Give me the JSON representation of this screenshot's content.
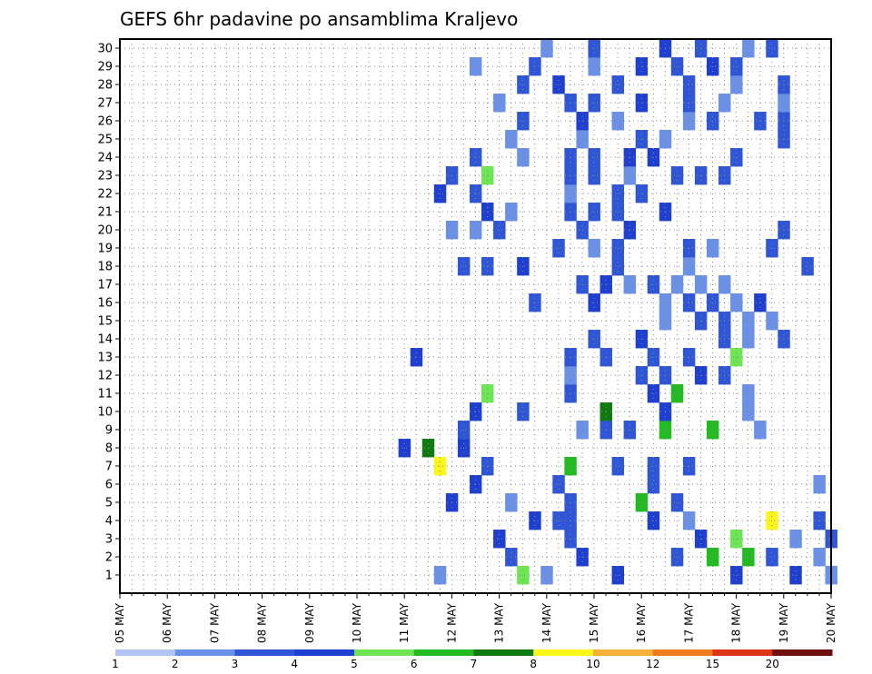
{
  "chart_data": {
    "type": "heatmap",
    "title": "GEFS 6hr padavine po ansamblima Kraljevo",
    "xlabel": "",
    "ylabel": "",
    "y_ticks": [
      "1",
      "2",
      "3",
      "4",
      "5",
      "6",
      "7",
      "8",
      "9",
      "10",
      "11",
      "12",
      "13",
      "14",
      "15",
      "16",
      "17",
      "18",
      "19",
      "20",
      "21",
      "22",
      "23",
      "24",
      "25",
      "26",
      "27",
      "28",
      "29",
      "30"
    ],
    "x_ticks": [
      "05 MAY",
      "06 MAY",
      "07 MAY",
      "08 MAY",
      "09 MAY",
      "10 MAY",
      "11 MAY",
      "12 MAY",
      "13 MAY",
      "14 MAY",
      "15 MAY",
      "16 MAY",
      "17 MAY",
      "18 MAY",
      "19 MAY",
      "20 MAY"
    ],
    "time_steps": 61,
    "grid": true,
    "legend": {
      "position": "bottom",
      "labels": [
        "1",
        "2",
        "3",
        "4",
        "5",
        "6",
        "7",
        "8",
        "10",
        "12",
        "15",
        "20"
      ],
      "colors": [
        "#b3c6f3",
        "#6a90e8",
        "#2e56d6",
        "#1f3fd1",
        "#6ee653",
        "#22bb22",
        "#0f7a0f",
        "#fbf71a",
        "#f7b13a",
        "#ee7b1c",
        "#dd3316",
        "#6e1010"
      ]
    },
    "ensemble_rows": {
      "1": [
        [
          27,
          1
        ],
        [
          34,
          4
        ],
        [
          36,
          1
        ],
        [
          42,
          3
        ],
        [
          52,
          3
        ],
        [
          57,
          3
        ],
        [
          60,
          1
        ]
      ],
      "2": [
        [
          33,
          2
        ],
        [
          39,
          3
        ],
        [
          47,
          2
        ],
        [
          50,
          5
        ],
        [
          53,
          5
        ],
        [
          55,
          2
        ],
        [
          59,
          1
        ]
      ],
      "3": [
        [
          32,
          3
        ],
        [
          38,
          2
        ],
        [
          49,
          3
        ],
        [
          52,
          4
        ],
        [
          57,
          1
        ],
        [
          60,
          2
        ]
      ],
      "4": [
        [
          35,
          3
        ],
        [
          37,
          2
        ],
        [
          38,
          2
        ],
        [
          45,
          3
        ],
        [
          48,
          1
        ],
        [
          55,
          7
        ],
        [
          59,
          2
        ]
      ],
      "5": [
        [
          28,
          3
        ],
        [
          33,
          1
        ],
        [
          38,
          2
        ],
        [
          44,
          5
        ],
        [
          47,
          2
        ]
      ],
      "6": [
        [
          30,
          3
        ],
        [
          37,
          2
        ],
        [
          45,
          2
        ],
        [
          59,
          1
        ]
      ],
      "7": [
        [
          27,
          7
        ],
        [
          31,
          2
        ],
        [
          38,
          5
        ],
        [
          42,
          2
        ],
        [
          45,
          2
        ],
        [
          48,
          2
        ]
      ],
      "8": [
        [
          24,
          3
        ],
        [
          26,
          6
        ],
        [
          29,
          3
        ]
      ],
      "9": [
        [
          29,
          2
        ],
        [
          39,
          1
        ],
        [
          41,
          2
        ],
        [
          43,
          2
        ],
        [
          46,
          5
        ],
        [
          50,
          5
        ],
        [
          54,
          1
        ]
      ],
      "10": [
        [
          30,
          3
        ],
        [
          34,
          2
        ],
        [
          41,
          6
        ],
        [
          46,
          3
        ],
        [
          53,
          1
        ]
      ],
      "11": [
        [
          31,
          4
        ],
        [
          38,
          2
        ],
        [
          45,
          3
        ],
        [
          47,
          5
        ],
        [
          53,
          1
        ]
      ],
      "12": [
        [
          38,
          1
        ],
        [
          44,
          2
        ],
        [
          46,
          2
        ],
        [
          49,
          3
        ],
        [
          51,
          2
        ]
      ],
      "13": [
        [
          25,
          3
        ],
        [
          38,
          2
        ],
        [
          41,
          2
        ],
        [
          45,
          2
        ],
        [
          48,
          2
        ],
        [
          52,
          4
        ]
      ],
      "14": [
        [
          40,
          2
        ],
        [
          44,
          3
        ],
        [
          51,
          2
        ],
        [
          53,
          1
        ],
        [
          56,
          2
        ]
      ],
      "15": [
        [
          46,
          1
        ],
        [
          49,
          2
        ],
        [
          51,
          2
        ],
        [
          53,
          1
        ],
        [
          55,
          1
        ]
      ],
      "16": [
        [
          35,
          2
        ],
        [
          40,
          3
        ],
        [
          46,
          1
        ],
        [
          48,
          2
        ],
        [
          50,
          2
        ],
        [
          52,
          1
        ],
        [
          54,
          3
        ]
      ],
      "17": [
        [
          39,
          2
        ],
        [
          41,
          3
        ],
        [
          43,
          1
        ],
        [
          45,
          2
        ],
        [
          47,
          1
        ],
        [
          49,
          1
        ],
        [
          51,
          1
        ]
      ],
      "18": [
        [
          29,
          2
        ],
        [
          31,
          2
        ],
        [
          34,
          3
        ],
        [
          42,
          2
        ],
        [
          48,
          1
        ],
        [
          58,
          2
        ]
      ],
      "19": [
        [
          37,
          2
        ],
        [
          40,
          1
        ],
        [
          42,
          2
        ],
        [
          48,
          2
        ],
        [
          50,
          1
        ],
        [
          55,
          2
        ]
      ],
      "20": [
        [
          28,
          1
        ],
        [
          30,
          1
        ],
        [
          32,
          2
        ],
        [
          39,
          2
        ],
        [
          43,
          3
        ],
        [
          56,
          2
        ]
      ],
      "21": [
        [
          31,
          3
        ],
        [
          33,
          1
        ],
        [
          38,
          2
        ],
        [
          40,
          2
        ],
        [
          42,
          2
        ],
        [
          46,
          3
        ]
      ],
      "22": [
        [
          27,
          3
        ],
        [
          30,
          2
        ],
        [
          38,
          1
        ],
        [
          42,
          2
        ],
        [
          44,
          2
        ]
      ],
      "23": [
        [
          28,
          2
        ],
        [
          31,
          4
        ],
        [
          38,
          2
        ],
        [
          40,
          2
        ],
        [
          43,
          1
        ],
        [
          47,
          2
        ],
        [
          49,
          2
        ],
        [
          51,
          2
        ]
      ],
      "24": [
        [
          30,
          2
        ],
        [
          34,
          1
        ],
        [
          38,
          2
        ],
        [
          40,
          2
        ],
        [
          43,
          3
        ],
        [
          45,
          3
        ],
        [
          52,
          2
        ]
      ],
      "25": [
        [
          33,
          1
        ],
        [
          39,
          1
        ],
        [
          44,
          2
        ],
        [
          46,
          1
        ],
        [
          56,
          2
        ]
      ],
      "26": [
        [
          34,
          2
        ],
        [
          39,
          3
        ],
        [
          42,
          1
        ],
        [
          48,
          1
        ],
        [
          50,
          2
        ],
        [
          54,
          2
        ],
        [
          56,
          2
        ]
      ],
      "27": [
        [
          32,
          1
        ],
        [
          38,
          2
        ],
        [
          40,
          2
        ],
        [
          44,
          3
        ],
        [
          48,
          2
        ],
        [
          51,
          1
        ],
        [
          56,
          1
        ]
      ],
      "28": [
        [
          34,
          2
        ],
        [
          37,
          3
        ],
        [
          42,
          2
        ],
        [
          48,
          2
        ],
        [
          52,
          1
        ],
        [
          56,
          2
        ]
      ],
      "29": [
        [
          30,
          1
        ],
        [
          35,
          2
        ],
        [
          40,
          1
        ],
        [
          44,
          3
        ],
        [
          47,
          2
        ],
        [
          50,
          3
        ],
        [
          52,
          2
        ]
      ],
      "30": [
        [
          36,
          1
        ],
        [
          40,
          2
        ],
        [
          46,
          3
        ],
        [
          49,
          2
        ],
        [
          53,
          1
        ],
        [
          55,
          2
        ]
      ]
    }
  }
}
